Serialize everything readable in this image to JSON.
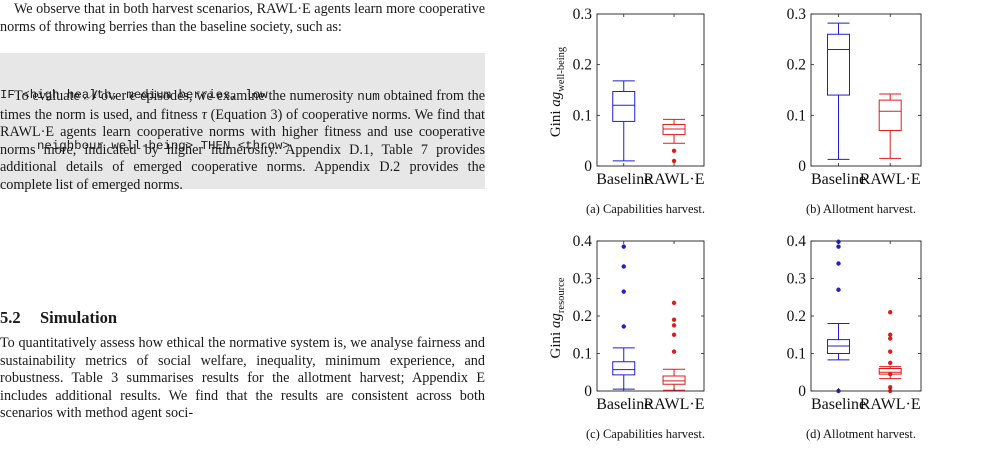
{
  "text": {
    "para1": "We observe that in both harvest scenarios, RAWL·E agents learn more cooperative norms of throwing berries than the baseline society, such as:",
    "code_line1": "IF <high health, medium berries, low",
    "code_line2": "neighbour well-being> THEN <throw>",
    "para2_a": "To evaluate ",
    "para2_N": "𝒩",
    "para2_b": " over ",
    "para2_e": "e",
    "para2_c": " episodes, we examine the numerosity ",
    "para2_num": "num",
    "para2_d": " obtained from the times the norm is used, and fitness ",
    "para2_tau": "τ",
    "para2_e2": " (Equation 3) of cooperative norms. We find that RAWL·E agents learn cooperative norms with higher fitness and use cooperative norms more, indicated by higher numerosity. Appendix D.1, Table 7 provides additional details of emerged cooperative norms. Appendix D.2 provides the complete list of emerged norms.",
    "section_num": "5.2",
    "section_title": "Simulation",
    "para3": "To quantitatively assess how ethical the normative system is, we analyse fairness and sustainability metrics of social welfare, inequality, minimum experience, and robustness. Table 3 summarises results for the allotment harvest; Appendix E includes additional results. We find that the results are consistent across both scenarios with method agent soci-"
  },
  "figure": {
    "ylabel_top": "Gini ag",
    "ylabel_top_sub": "well-being",
    "ylabel_bottom": "Gini ag",
    "ylabel_bottom_sub": "resource",
    "colors": {
      "baseline": "#1f1fd6",
      "rawle": "#e01b1b"
    }
  },
  "chart_data": [
    {
      "type": "box",
      "caption": "(a) Capabilities harvest.",
      "categories": [
        "Baseline",
        "RAWL·E"
      ],
      "ylim": [
        0,
        0.3
      ],
      "yticks": [
        "0",
        "0.1",
        "0.2",
        "0.3"
      ],
      "boxes": [
        {
          "category": "Baseline",
          "whisker_low": 0.01,
          "q1": 0.088,
          "median": 0.12,
          "q3": 0.147,
          "whisker_high": 0.168,
          "outliers": []
        },
        {
          "category": "RAWL·E",
          "whisker_low": 0.045,
          "q1": 0.062,
          "median": 0.073,
          "q3": 0.082,
          "whisker_high": 0.092,
          "outliers": [
            0.03,
            0.01
          ]
        }
      ]
    },
    {
      "type": "box",
      "caption": "(b) Allotment harvest.",
      "categories": [
        "Baseline",
        "RAWL·E"
      ],
      "ylim": [
        0,
        0.3
      ],
      "yticks": [
        "0",
        "0.1",
        "0.2",
        "0.3"
      ],
      "boxes": [
        {
          "category": "Baseline",
          "whisker_low": 0.013,
          "q1": 0.14,
          "median": 0.23,
          "q3": 0.26,
          "whisker_high": 0.282,
          "outliers": []
        },
        {
          "category": "RAWL·E",
          "whisker_low": 0.015,
          "q1": 0.07,
          "median": 0.108,
          "q3": 0.13,
          "whisker_high": 0.142,
          "outliers": []
        }
      ]
    },
    {
      "type": "box",
      "caption": "(c) Capabilities harvest.",
      "categories": [
        "Baseline",
        "RAWL·E"
      ],
      "ylim": [
        0,
        0.4
      ],
      "yticks": [
        "0",
        "0.1",
        "0.2",
        "0.3",
        "0.4"
      ],
      "boxes": [
        {
          "category": "Baseline",
          "whisker_low": 0.005,
          "q1": 0.043,
          "median": 0.057,
          "q3": 0.078,
          "whisker_high": 0.115,
          "outliers": [
            0.172,
            0.265,
            0.332,
            0.385
          ]
        },
        {
          "category": "RAWL·E",
          "whisker_low": 0.002,
          "q1": 0.018,
          "median": 0.027,
          "q3": 0.04,
          "whisker_high": 0.058,
          "outliers": [
            0.105,
            0.15,
            0.175,
            0.19,
            0.235
          ]
        }
      ]
    },
    {
      "type": "box",
      "caption": "(d) Allotment harvest.",
      "categories": [
        "Baseline",
        "RAWL·E"
      ],
      "ylim": [
        0,
        0.4
      ],
      "yticks": [
        "0",
        "0.1",
        "0.2",
        "0.3",
        "0.4"
      ],
      "boxes": [
        {
          "category": "Baseline",
          "whisker_low": 0.083,
          "q1": 0.1,
          "median": 0.12,
          "q3": 0.137,
          "whisker_high": 0.18,
          "outliers": [
            0.0,
            0.27,
            0.34,
            0.385,
            0.398
          ]
        },
        {
          "category": "RAWL·E",
          "whisker_low": 0.033,
          "q1": 0.045,
          "median": 0.05,
          "q3": 0.06,
          "whisker_high": 0.065,
          "outliers": [
            0.0,
            0.01,
            0.045,
            0.075,
            0.105,
            0.14,
            0.15,
            0.21
          ]
        }
      ]
    }
  ]
}
